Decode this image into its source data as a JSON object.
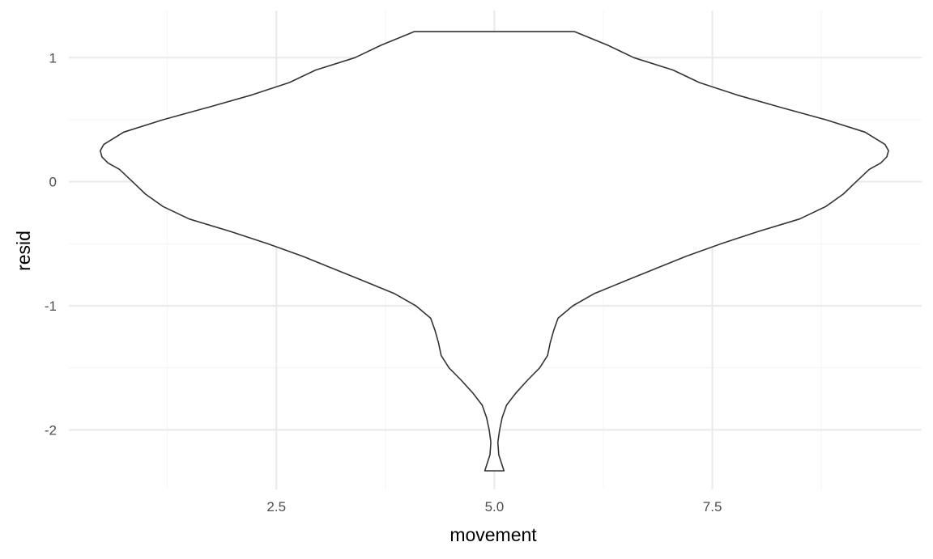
{
  "chart_data": {
    "type": "violin",
    "xlabel": "movement",
    "ylabel": "resid",
    "xlim": [
      0.12,
      9.9
    ],
    "ylim": [
      -2.48,
      1.38
    ],
    "x_ticks": [
      {
        "value": 2.5,
        "label": "2.5"
      },
      {
        "value": 5.0,
        "label": "5.0"
      },
      {
        "value": 7.5,
        "label": "7.5"
      }
    ],
    "x_minor_ticks": [
      1.25,
      3.75,
      6.25,
      8.75
    ],
    "y_ticks": [
      {
        "value": 1,
        "label": "1"
      },
      {
        "value": 0,
        "label": "0"
      },
      {
        "value": -1,
        "label": "-1"
      },
      {
        "value": -2,
        "label": "-2"
      }
    ],
    "y_minor_ticks": [
      0.5,
      -0.5,
      -1.5
    ],
    "grid": true,
    "violin": {
      "center_x": 5.0,
      "profile": [
        {
          "y": 1.21,
          "halfwidth": 0.92
        },
        {
          "y": 1.1,
          "halfwidth": 1.3
        },
        {
          "y": 1.0,
          "halfwidth": 1.6
        },
        {
          "y": 0.9,
          "halfwidth": 2.05
        },
        {
          "y": 0.8,
          "halfwidth": 2.35
        },
        {
          "y": 0.7,
          "halfwidth": 2.78
        },
        {
          "y": 0.6,
          "halfwidth": 3.28
        },
        {
          "y": 0.5,
          "halfwidth": 3.8
        },
        {
          "y": 0.4,
          "halfwidth": 4.25
        },
        {
          "y": 0.3,
          "halfwidth": 4.48
        },
        {
          "y": 0.25,
          "halfwidth": 4.52
        },
        {
          "y": 0.2,
          "halfwidth": 4.5
        },
        {
          "y": 0.15,
          "halfwidth": 4.43
        },
        {
          "y": 0.1,
          "halfwidth": 4.3
        },
        {
          "y": 0.0,
          "halfwidth": 4.15
        },
        {
          "y": -0.1,
          "halfwidth": 4.0
        },
        {
          "y": -0.2,
          "halfwidth": 3.8
        },
        {
          "y": -0.3,
          "halfwidth": 3.5
        },
        {
          "y": -0.4,
          "halfwidth": 3.03
        },
        {
          "y": -0.5,
          "halfwidth": 2.6
        },
        {
          "y": -0.6,
          "halfwidth": 2.2
        },
        {
          "y": -0.7,
          "halfwidth": 1.85
        },
        {
          "y": -0.8,
          "halfwidth": 1.5
        },
        {
          "y": -0.9,
          "halfwidth": 1.15
        },
        {
          "y": -1.0,
          "halfwidth": 0.9
        },
        {
          "y": -1.1,
          "halfwidth": 0.73
        },
        {
          "y": -1.2,
          "halfwidth": 0.68
        },
        {
          "y": -1.3,
          "halfwidth": 0.64
        },
        {
          "y": -1.4,
          "halfwidth": 0.61
        },
        {
          "y": -1.5,
          "halfwidth": 0.52
        },
        {
          "y": -1.6,
          "halfwidth": 0.38
        },
        {
          "y": -1.7,
          "halfwidth": 0.25
        },
        {
          "y": -1.8,
          "halfwidth": 0.14
        },
        {
          "y": -1.9,
          "halfwidth": 0.09
        },
        {
          "y": -2.0,
          "halfwidth": 0.06
        },
        {
          "y": -2.1,
          "halfwidth": 0.04
        },
        {
          "y": -2.2,
          "halfwidth": 0.05
        },
        {
          "y": -2.33,
          "halfwidth": 0.11
        }
      ]
    }
  },
  "colors": {
    "background": "#ffffff",
    "grid_major": "#ebebeb",
    "grid_minor": "#f5f5f5",
    "outline": "#333333",
    "fill": "#ffffff"
  }
}
